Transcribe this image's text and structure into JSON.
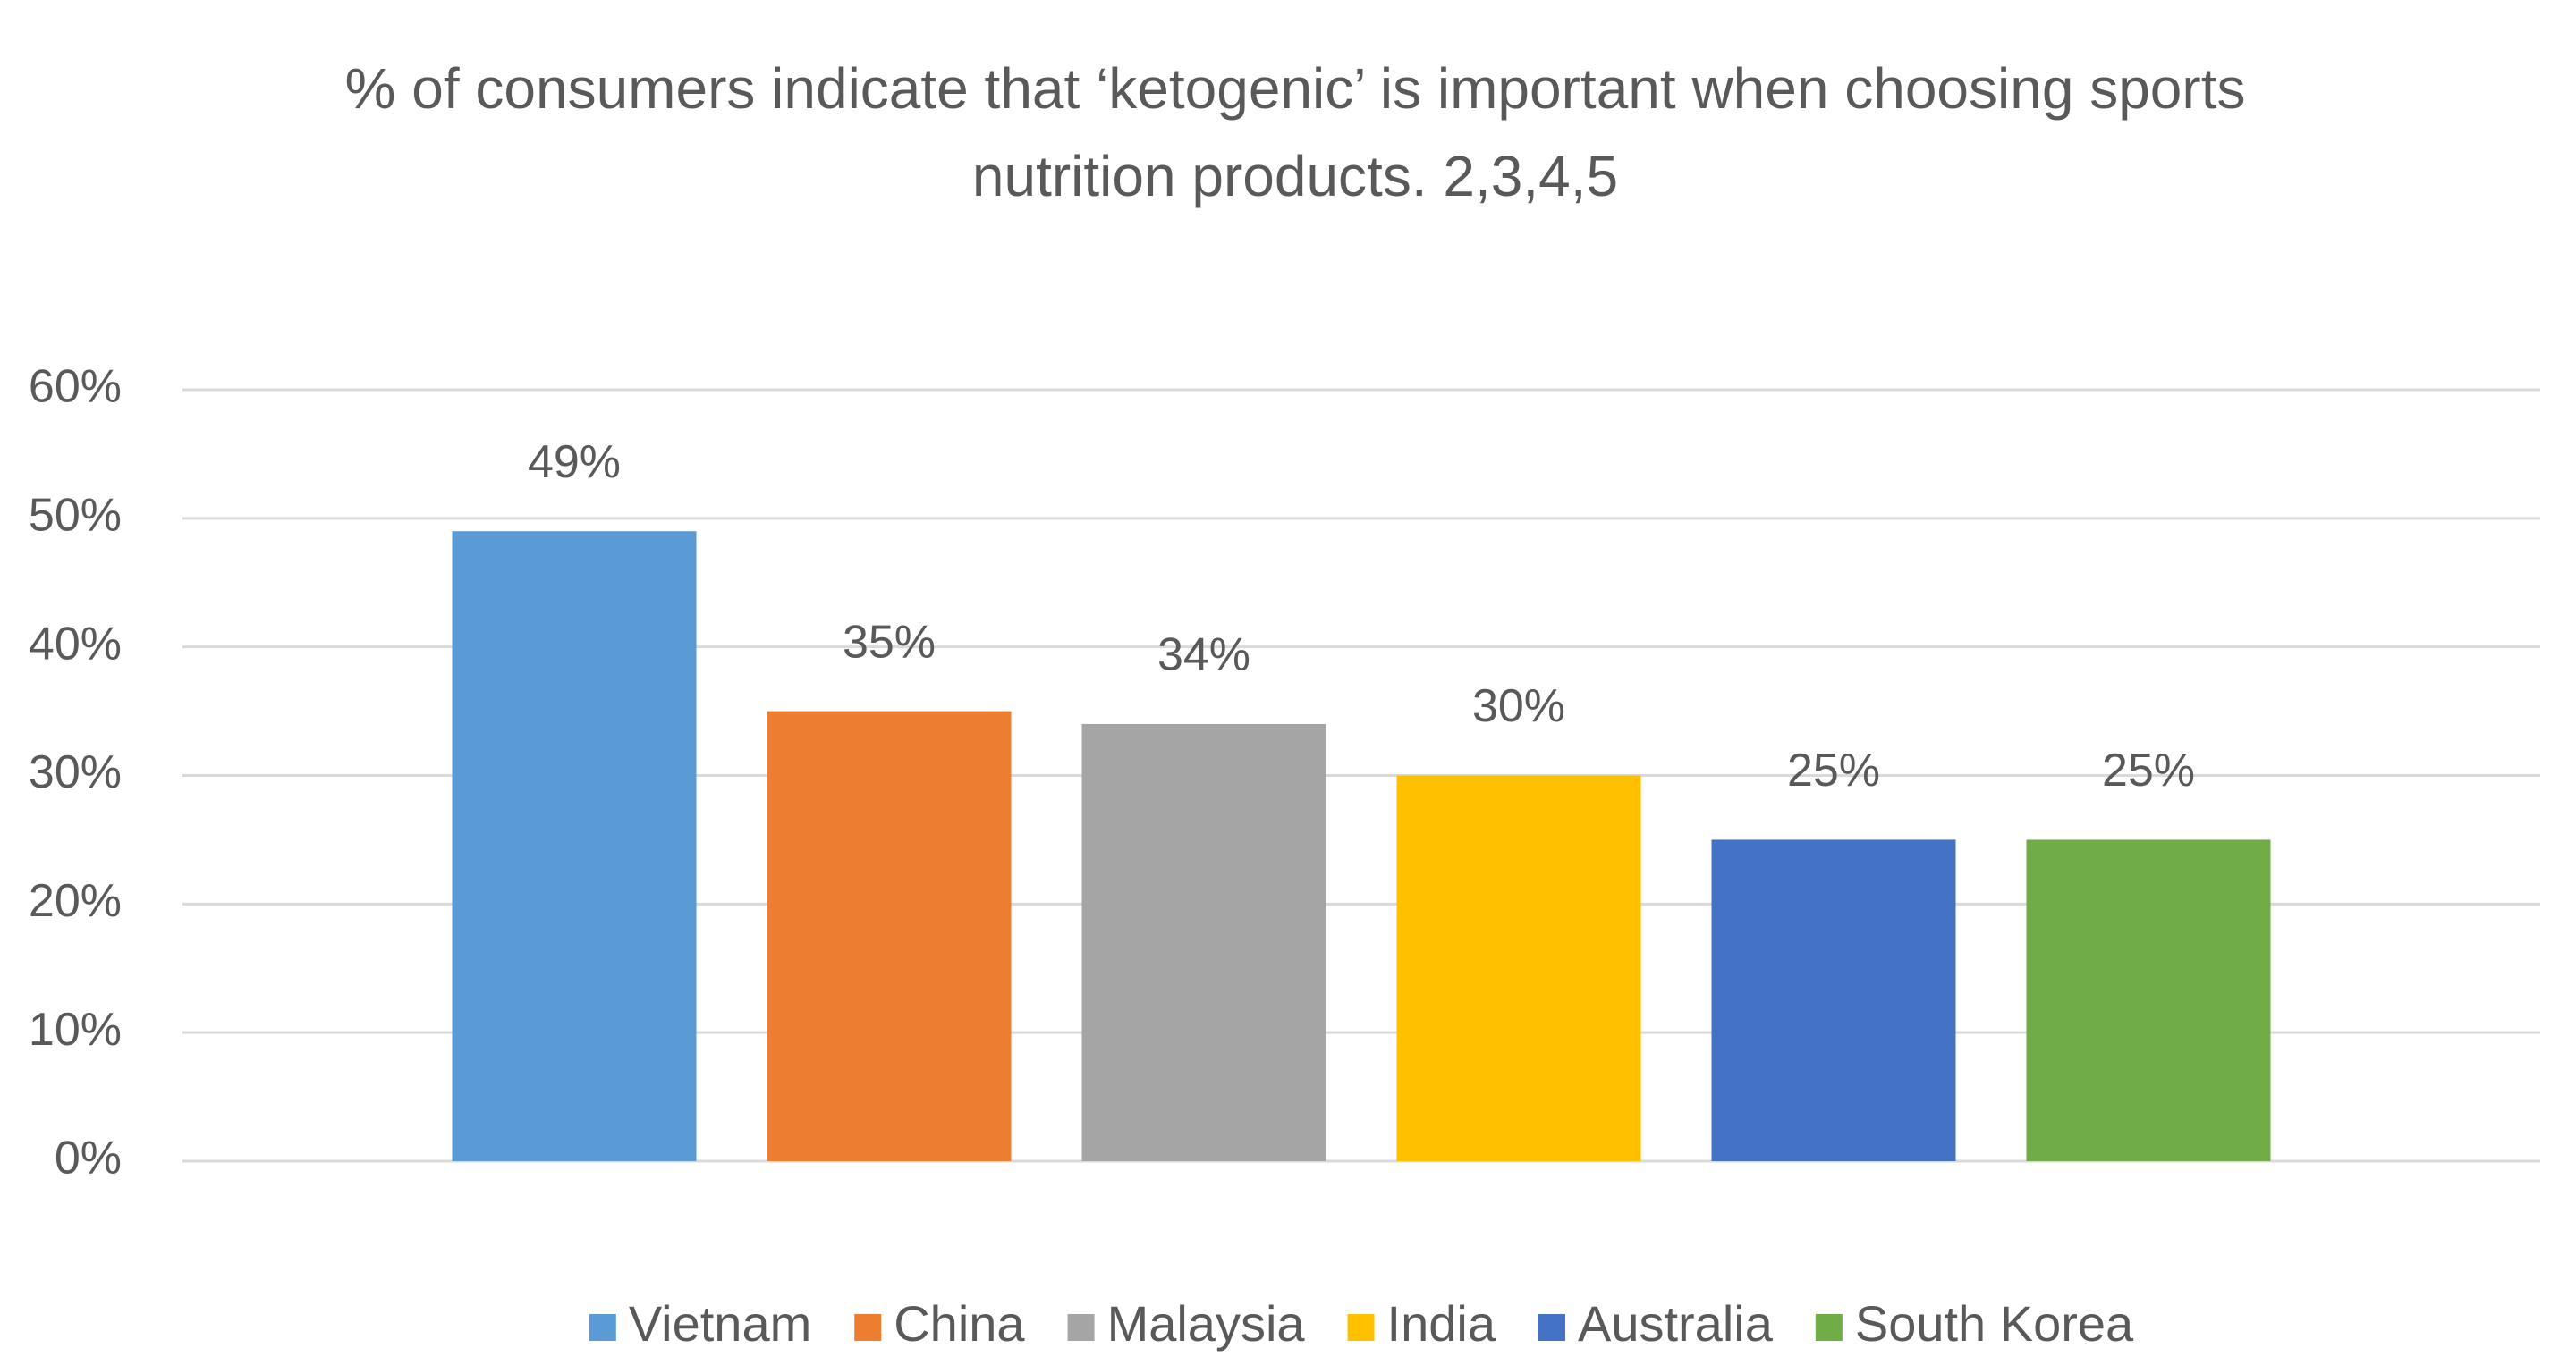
{
  "chart_data": {
    "type": "bar",
    "title": "% of consumers indicate that ‘ketogenic’ is important when choosing sports nutrition products. 2,3,4,5",
    "categories": [
      null
    ],
    "series": [
      {
        "name": "Vietnam",
        "color": "#5b9bd5",
        "values": [
          49
        ],
        "value_labels": [
          "49%"
        ]
      },
      {
        "name": "China",
        "color": "#ed7d31",
        "values": [
          35
        ],
        "value_labels": [
          "35%"
        ]
      },
      {
        "name": "Malaysia",
        "color": "#a5a5a5",
        "values": [
          34
        ],
        "value_labels": [
          "34%"
        ]
      },
      {
        "name": "India",
        "color": "#ffc000",
        "values": [
          30
        ],
        "value_labels": [
          "30%"
        ]
      },
      {
        "name": "Australia",
        "color": "#4472c4",
        "values": [
          25
        ],
        "value_labels": [
          "25%"
        ]
      },
      {
        "name": "South Korea",
        "color": "#70ad47",
        "values": [
          25
        ],
        "value_labels": [
          "25%"
        ]
      }
    ],
    "ylim": [
      0,
      60
    ],
    "yticks": [
      {
        "value": 0,
        "label": "0%"
      },
      {
        "value": 10,
        "label": "10%"
      },
      {
        "value": 20,
        "label": "20%"
      },
      {
        "value": 30,
        "label": "30%"
      },
      {
        "value": 40,
        "label": "40%"
      },
      {
        "value": 50,
        "label": "50%"
      },
      {
        "value": 60,
        "label": "60%"
      }
    ],
    "grid": true,
    "legend": "bottom"
  }
}
